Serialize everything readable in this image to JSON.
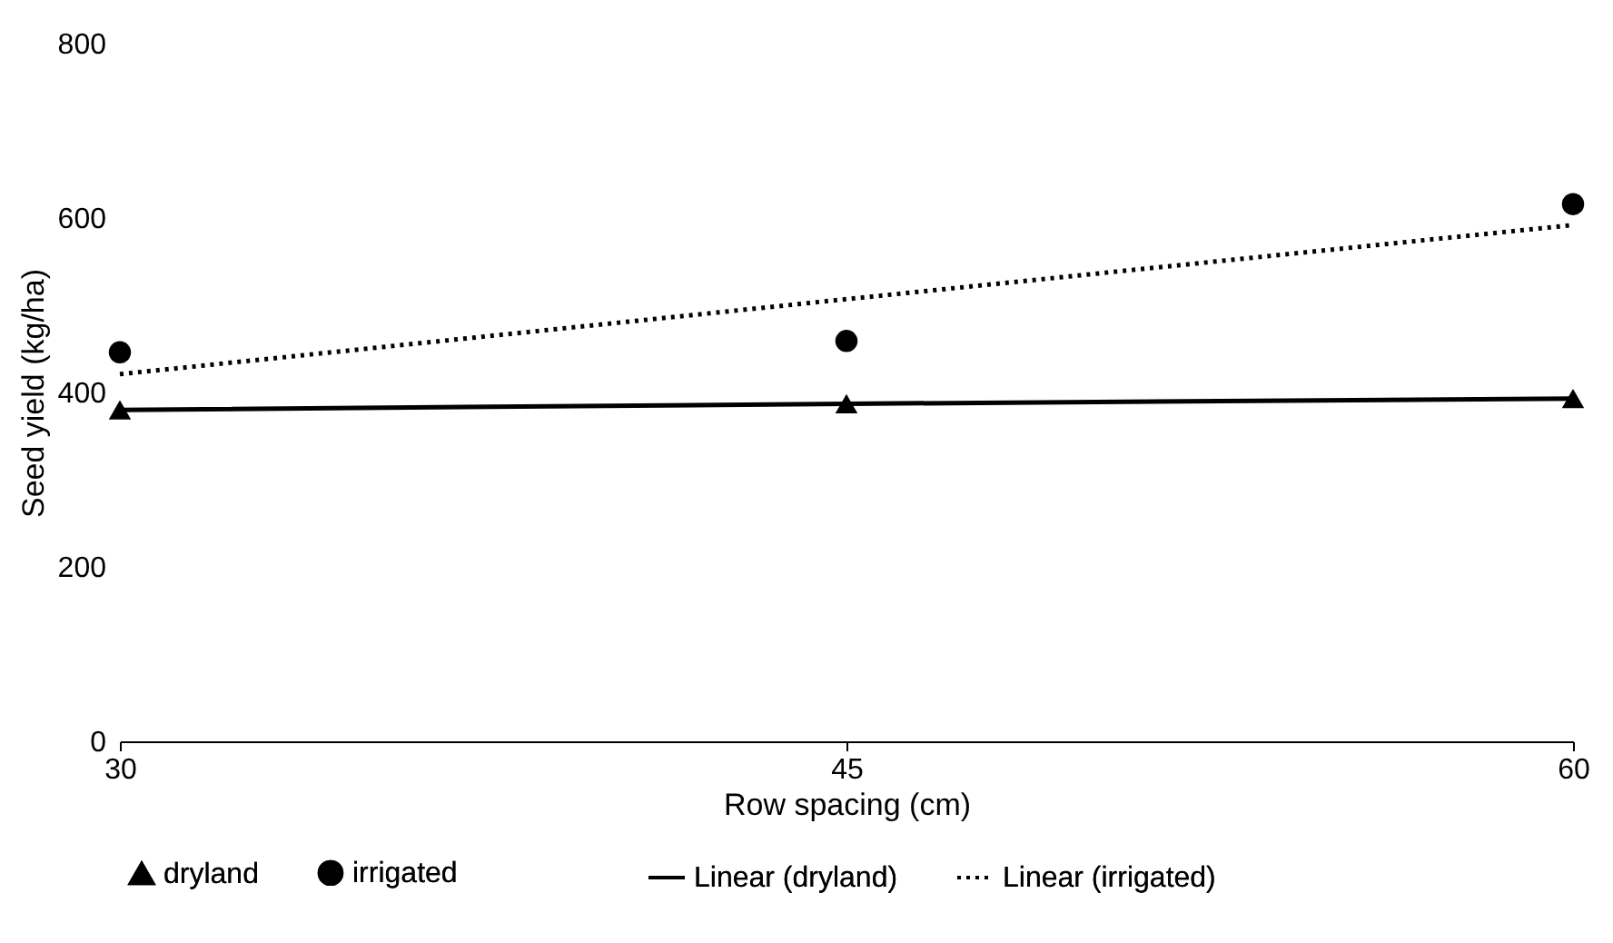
{
  "chart_data": {
    "type": "scatter",
    "xlabel": "Row spacing (cm)",
    "ylabel": "Seed yield (kg/ha)",
    "xlim": [
      30,
      60
    ],
    "xticks": [
      30,
      45,
      60
    ],
    "ylim": [
      0,
      800
    ],
    "yticks": [
      0,
      200,
      400,
      600,
      800
    ],
    "grid": false,
    "legend": "bottom",
    "x": [
      30,
      45,
      60
    ],
    "series": [
      {
        "name": "dryland",
        "color": "#000000",
        "marker": "triangle",
        "values": [
          380,
          387,
          393
        ]
      },
      {
        "name": "irrigated",
        "color": "#000000",
        "marker": "circle",
        "values": [
          446,
          459,
          616
        ]
      },
      {
        "name": "Linear (dryland)",
        "color": "#000000",
        "type": "line",
        "line_style": "solid",
        "values": [
          380,
          387,
          393
        ]
      },
      {
        "name": "Linear (irrigated)",
        "color": "#000000",
        "type": "line",
        "line_style": "dotted",
        "values": [
          421,
          507,
          592
        ]
      }
    ]
  }
}
